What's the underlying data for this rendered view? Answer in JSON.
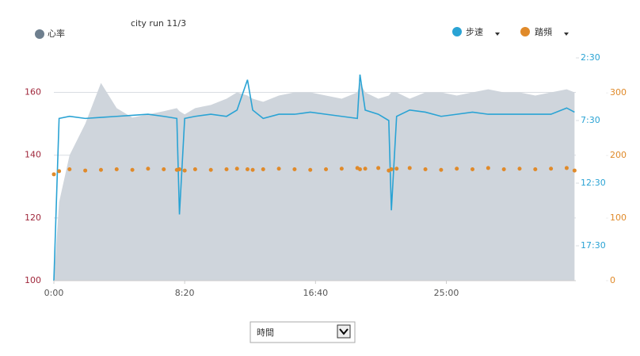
{
  "chart_data": {
    "type": "combo",
    "subtitle": "city run 11/3",
    "x": [
      0,
      20,
      60,
      120,
      180,
      240,
      300,
      360,
      420,
      470,
      480,
      500,
      540,
      600,
      660,
      700,
      740,
      760,
      800,
      860,
      920,
      980,
      1040,
      1100,
      1160,
      1170,
      1190,
      1240,
      1280,
      1290,
      1310,
      1360,
      1420,
      1480,
      1540,
      1600,
      1660,
      1720,
      1780,
      1840,
      1900,
      1960,
      1990
    ],
    "xlim": [
      0,
      1995
    ],
    "xticks": [
      {
        "value": 0,
        "label": "0:00"
      },
      {
        "value": 500,
        "label": "8:20"
      },
      {
        "value": 1000,
        "label": "16:40"
      },
      {
        "value": 1500,
        "label": "25:00"
      }
    ],
    "ylim": [
      100,
      171
    ],
    "yticks": [
      100,
      120,
      140,
      160
    ],
    "y2lim": [
      1217,
      150
    ],
    "y2ticks": [
      {
        "value": 150,
        "label": "2:30"
      },
      {
        "value": 450,
        "label": "7:30"
      },
      {
        "value": 750,
        "label": "12:30"
      },
      {
        "value": 1050,
        "label": "17:30"
      }
    ],
    "y3lim": [
      0,
      356
    ],
    "y3ticks": [
      0,
      100,
      200,
      300
    ],
    "grid": true,
    "series": [
      {
        "name": "心率",
        "type": "area",
        "axis": "y",
        "color": "#cfd5dc",
        "marker_color": "#6e7f8e",
        "values": [
          100,
          125,
          140,
          150,
          163,
          155,
          152,
          153,
          154,
          155,
          154,
          153,
          155,
          156,
          158,
          160,
          159,
          158,
          157,
          159,
          160,
          160,
          159,
          158,
          160,
          163,
          160,
          158,
          159,
          160,
          160,
          158,
          160,
          160,
          159,
          160,
          161,
          160,
          160,
          159,
          160,
          161,
          160
        ]
      },
      {
        "name": "步速",
        "type": "line",
        "axis": "y2",
        "color": "#2aa3d4",
        "values": [
          1217,
          440,
          430,
          440,
          435,
          430,
          425,
          420,
          430,
          440,
          900,
          440,
          430,
          420,
          430,
          400,
          255,
          400,
          440,
          420,
          420,
          410,
          420,
          430,
          440,
          230,
          400,
          420,
          450,
          880,
          430,
          400,
          410,
          430,
          420,
          410,
          420,
          420,
          420,
          420,
          420,
          390,
          410
        ]
      },
      {
        "name": "踏頻",
        "type": "dots",
        "axis": "y3",
        "color": "#e08a2a",
        "values": [
          170,
          175,
          178,
          176,
          177,
          178,
          177,
          179,
          178,
          177,
          178,
          176,
          178,
          177,
          178,
          179,
          178,
          177,
          178,
          179,
          178,
          177,
          178,
          179,
          180,
          178,
          179,
          180,
          176,
          178,
          179,
          180,
          178,
          177,
          179,
          178,
          180,
          178,
          179,
          178,
          179,
          180,
          176
        ]
      }
    ]
  },
  "x_axis_selector": "時間"
}
